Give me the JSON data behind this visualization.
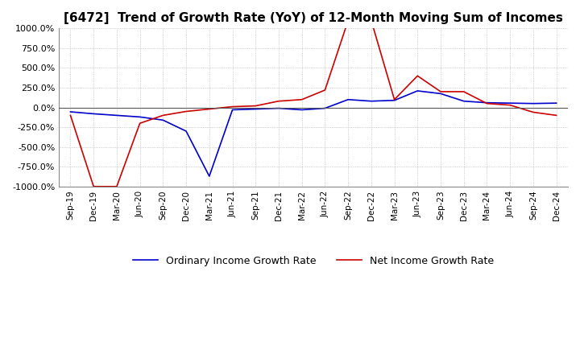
{
  "title": "[6472]  Trend of Growth Rate (YoY) of 12-Month Moving Sum of Incomes",
  "title_fontsize": 11,
  "ylim": [
    -1000,
    1000
  ],
  "yticks": [
    -1000,
    -750,
    -500,
    -250,
    0,
    250,
    500,
    750,
    1000
  ],
  "ytick_labels": [
    "-1000.0%",
    "-750.0%",
    "-500.0%",
    "-250.0%",
    "0.0%",
    "250.0%",
    "500.0%",
    "750.0%",
    "1000.0%"
  ],
  "background_color": "#ffffff",
  "plot_bg_color": "#ffffff",
  "grid_color": "#aaaaaa",
  "ordinary_color": "#0000cc",
  "net_color": "#cc0000",
  "legend_ordinary": "Ordinary Income Growth Rate",
  "legend_net": "Net Income Growth Rate",
  "xtick_labels": [
    "Sep-19",
    "Dec-19",
    "Mar-20",
    "Jun-20",
    "Sep-20",
    "Dec-20",
    "Mar-21",
    "Jun-21",
    "Sep-21",
    "Dec-21",
    "Mar-22",
    "Jun-22",
    "Sep-22",
    "Dec-22",
    "Mar-23",
    "Jun-23",
    "Sep-23",
    "Dec-23",
    "Mar-24",
    "Jun-24",
    "Sep-24",
    "Dec-24"
  ],
  "ordinary_data": [
    [
      "Sep-19",
      -55
    ],
    [
      "Dec-19",
      -80
    ],
    [
      "Mar-20",
      -100
    ],
    [
      "Jun-20",
      -120
    ],
    [
      "Sep-20",
      -160
    ],
    [
      "Dec-20",
      -300
    ],
    [
      "Mar-21",
      -870
    ],
    [
      "Jun-21",
      -30
    ],
    [
      "Sep-21",
      -20
    ],
    [
      "Dec-21",
      -10
    ],
    [
      "Mar-22",
      -30
    ],
    [
      "Jun-22",
      -10
    ],
    [
      "Sep-22",
      100
    ],
    [
      "Dec-22",
      80
    ],
    [
      "Mar-23",
      90
    ],
    [
      "Jun-23",
      210
    ],
    [
      "Sep-23",
      175
    ],
    [
      "Dec-23",
      80
    ],
    [
      "Mar-24",
      60
    ],
    [
      "Jun-24",
      55
    ],
    [
      "Sep-24",
      50
    ],
    [
      "Dec-24",
      55
    ]
  ],
  "net_data": [
    [
      "Sep-19",
      -100
    ],
    [
      "Dec-19",
      -1000
    ],
    [
      "Mar-20",
      -1000
    ],
    [
      "Jun-20",
      -200
    ],
    [
      "Sep-20",
      -100
    ],
    [
      "Dec-20",
      -50
    ],
    [
      "Mar-21",
      -20
    ],
    [
      "Jun-21",
      10
    ],
    [
      "Sep-21",
      20
    ],
    [
      "Dec-21",
      80
    ],
    [
      "Mar-22",
      100
    ],
    [
      "Jun-22",
      220
    ],
    [
      "Sep-22",
      1100
    ],
    [
      "Dec-22",
      1100
    ],
    [
      "Mar-23",
      100
    ],
    [
      "Jun-23",
      400
    ],
    [
      "Sep-23",
      200
    ],
    [
      "Dec-23",
      200
    ],
    [
      "Mar-24",
      50
    ],
    [
      "Jun-24",
      30
    ],
    [
      "Sep-24",
      -60
    ],
    [
      "Dec-24",
      -100
    ]
  ]
}
